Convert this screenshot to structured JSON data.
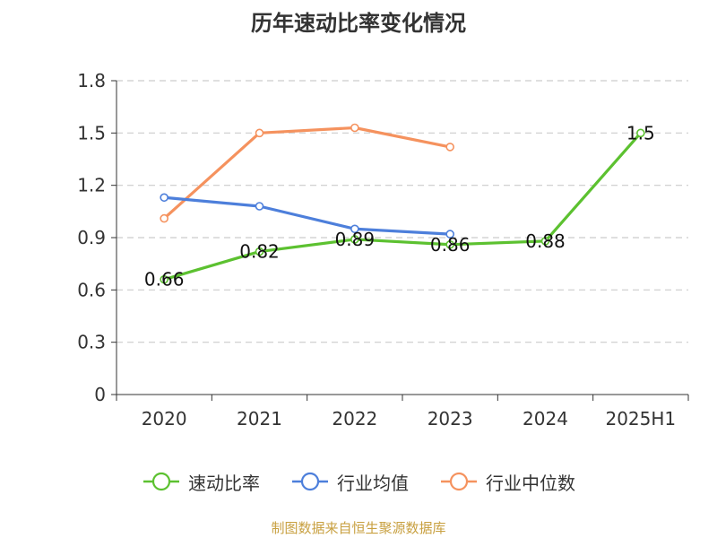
{
  "chart_data": {
    "type": "line",
    "title": "历年速动比率变化情况",
    "categories": [
      "2020",
      "2021",
      "2022",
      "2023",
      "2024",
      "2025H1"
    ],
    "ylim": [
      0,
      1.8
    ],
    "yticks": [
      "0",
      "0.3",
      "0.6",
      "0.9",
      "1.2",
      "1.5",
      "1.8"
    ],
    "ytick_values": [
      0,
      0.3,
      0.6,
      0.9,
      1.2,
      1.5,
      1.8
    ],
    "grid": true,
    "legend_position": "bottom",
    "series": [
      {
        "name": "速动比率",
        "color": "#5cc130",
        "values": [
          0.66,
          0.82,
          0.89,
          0.86,
          0.88,
          1.5
        ],
        "labels": [
          "0.66",
          "0.82",
          "0.89",
          "0.86",
          "0.88",
          "1.5"
        ]
      },
      {
        "name": "行业均值",
        "color": "#4d7fdb",
        "values": [
          1.13,
          1.08,
          0.95,
          0.92,
          null,
          null
        ]
      },
      {
        "name": "行业中位数",
        "color": "#f5925e",
        "values": [
          1.01,
          1.5,
          1.53,
          1.42,
          null,
          null
        ]
      }
    ],
    "source_note": "制图数据来自恒生聚源数据库"
  }
}
